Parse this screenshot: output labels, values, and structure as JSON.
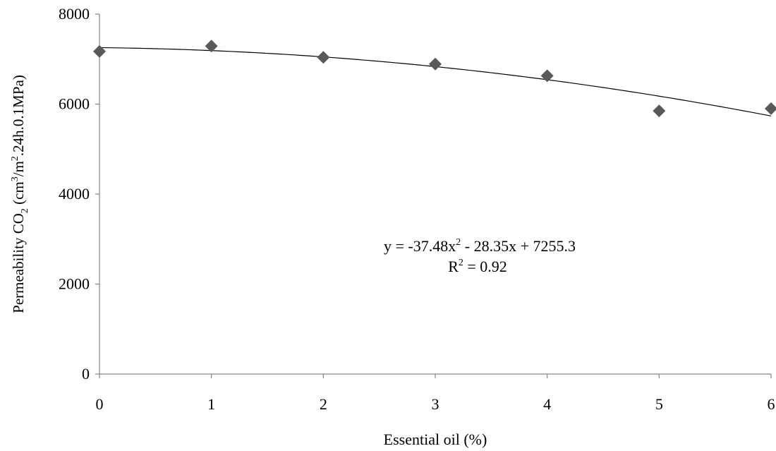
{
  "chart_data": {
    "type": "scatter",
    "title": "",
    "xlabel": "Essential oil (%)",
    "ylabel_parts": {
      "prefix": "Permeability CO",
      "sub": "2",
      "mid1": " (cm",
      "sup1": "3",
      "mid2": "/m",
      "sup2": "2",
      "suffix": ".24h.0.1MPa)"
    },
    "xlim": [
      0,
      6
    ],
    "ylim": [
      0,
      8000
    ],
    "x_ticks": [
      "0",
      "1",
      "2",
      "3",
      "4",
      "5",
      "6"
    ],
    "y_ticks": [
      "0",
      "2000",
      "4000",
      "6000",
      "8000"
    ],
    "grid": false,
    "legend": "none",
    "series": [
      {
        "marker": "diamond",
        "color": "#595959",
        "points": [
          {
            "x": 0,
            "y": 7170
          },
          {
            "x": 1,
            "y": 7290
          },
          {
            "x": 2,
            "y": 7040
          },
          {
            "x": 3,
            "y": 6890
          },
          {
            "x": 4,
            "y": 6630
          },
          {
            "x": 5,
            "y": 5850
          },
          {
            "x": 6,
            "y": 5900
          }
        ]
      }
    ],
    "trendline": {
      "type": "polynomial",
      "coefficients": {
        "a": -37.48,
        "b": -28.35,
        "c": 7255.3
      },
      "color": "#000000"
    },
    "annotation": {
      "equation_prefix": "y = -37.48x",
      "equation_sup": "2",
      "equation_suffix": " - 28.35x + 7255.3",
      "r2_prefix": "R",
      "r2_sup": "2",
      "r2_suffix": " = 0.92"
    }
  }
}
